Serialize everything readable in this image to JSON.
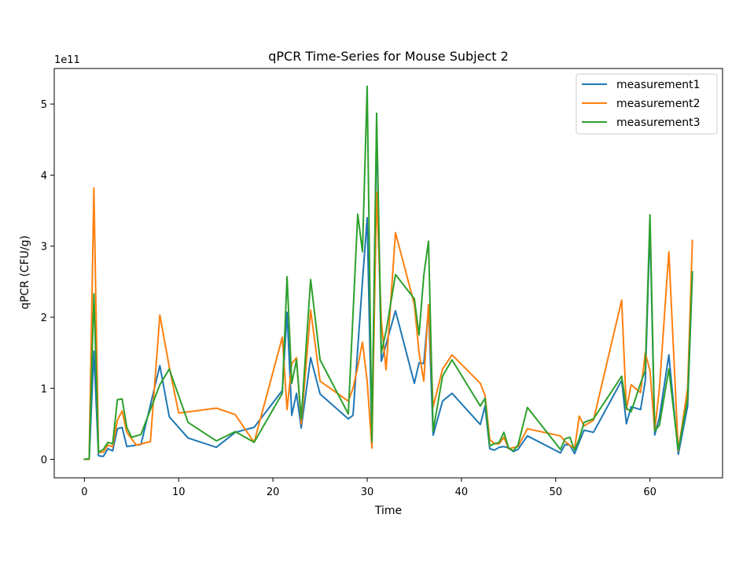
{
  "chart_data": {
    "type": "line",
    "title": "qPCR Time-Series for Mouse Subject 2",
    "xlabel": "Time",
    "ylabel": "qPCR (CFU/g)",
    "offset_text": "1e11",
    "xlim": [
      -3.2,
      67.7
    ],
    "ylim": [
      -0.26,
      5.5
    ],
    "xticks": [
      0,
      10,
      20,
      30,
      40,
      50,
      60
    ],
    "yticks": [
      0,
      1,
      2,
      3,
      4,
      5
    ],
    "legend_position": "top-right",
    "grid": false,
    "series": [
      {
        "name": "measurement1",
        "color": "#1f77b4",
        "points": [
          [
            0,
            0.0
          ],
          [
            0.5,
            0.0
          ],
          [
            1,
            1.52
          ],
          [
            1.5,
            0.05
          ],
          [
            2,
            0.04
          ],
          [
            2.5,
            0.15
          ],
          [
            3,
            0.12
          ],
          [
            3.5,
            0.43
          ],
          [
            4,
            0.45
          ],
          [
            4.5,
            0.18
          ],
          [
            5.5,
            0.2
          ],
          [
            6,
            0.21
          ],
          [
            8,
            1.32
          ],
          [
            9,
            0.6
          ],
          [
            11,
            0.3
          ],
          [
            14,
            0.17
          ],
          [
            16,
            0.38
          ],
          [
            18,
            0.45
          ],
          [
            21,
            0.97
          ],
          [
            21.5,
            2.07
          ],
          [
            22,
            0.62
          ],
          [
            22.5,
            0.93
          ],
          [
            23,
            0.44
          ],
          [
            24,
            1.43
          ],
          [
            25,
            0.92
          ],
          [
            28,
            0.57
          ],
          [
            28.5,
            0.62
          ],
          [
            29.5,
            2.5
          ],
          [
            30,
            3.4
          ],
          [
            30.5,
            0.2
          ],
          [
            31,
            4.7
          ],
          [
            31.5,
            1.38
          ],
          [
            33,
            2.09
          ],
          [
            35,
            1.07
          ],
          [
            35.5,
            1.36
          ],
          [
            36,
            1.35
          ],
          [
            36.5,
            2.12
          ],
          [
            37,
            0.34
          ],
          [
            38,
            0.82
          ],
          [
            39,
            0.93
          ],
          [
            42,
            0.49
          ],
          [
            42.5,
            0.75
          ],
          [
            43,
            0.15
          ],
          [
            43.5,
            0.13
          ],
          [
            44,
            0.17
          ],
          [
            44.5,
            0.18
          ],
          [
            45,
            0.16
          ],
          [
            45.5,
            0.11
          ],
          [
            46,
            0.14
          ],
          [
            47,
            0.33
          ],
          [
            50.5,
            0.09
          ],
          [
            51,
            0.21
          ],
          [
            51.5,
            0.2
          ],
          [
            52,
            0.08
          ],
          [
            53,
            0.41
          ],
          [
            54,
            0.38
          ],
          [
            57,
            1.11
          ],
          [
            57.5,
            0.5
          ],
          [
            58,
            0.74
          ],
          [
            59,
            0.7
          ],
          [
            59.5,
            1.1
          ],
          [
            60,
            3.3
          ],
          [
            60.5,
            0.34
          ],
          [
            61,
            0.59
          ],
          [
            62,
            1.47
          ],
          [
            63,
            0.07
          ],
          [
            64,
            0.75
          ],
          [
            64.5,
            2.6
          ]
        ]
      },
      {
        "name": "measurement2",
        "color": "#ff7f0e",
        "points": [
          [
            0,
            0.0
          ],
          [
            0.5,
            0.0
          ],
          [
            1,
            3.82
          ],
          [
            1.5,
            0.1
          ],
          [
            2,
            0.1
          ],
          [
            2.5,
            0.2
          ],
          [
            3,
            0.18
          ],
          [
            3.5,
            0.55
          ],
          [
            4,
            0.68
          ],
          [
            4.5,
            0.38
          ],
          [
            5.5,
            0.2
          ],
          [
            7,
            0.25
          ],
          [
            8,
            2.03
          ],
          [
            9,
            1.3
          ],
          [
            10,
            0.65
          ],
          [
            14,
            0.72
          ],
          [
            16,
            0.63
          ],
          [
            18,
            0.24
          ],
          [
            21,
            1.72
          ],
          [
            21.5,
            0.7
          ],
          [
            22,
            1.35
          ],
          [
            22.5,
            1.43
          ],
          [
            23,
            0.5
          ],
          [
            24,
            2.1
          ],
          [
            25,
            1.1
          ],
          [
            28,
            0.82
          ],
          [
            28.5,
            1.0
          ],
          [
            29,
            1.3
          ],
          [
            29.5,
            1.65
          ],
          [
            30,
            1.1
          ],
          [
            30.5,
            0.16
          ],
          [
            31,
            3.76
          ],
          [
            31.5,
            1.95
          ],
          [
            32,
            1.26
          ],
          [
            33,
            3.19
          ],
          [
            35,
            2.18
          ],
          [
            35.5,
            1.5
          ],
          [
            36,
            1.1
          ],
          [
            36.5,
            2.18
          ],
          [
            37,
            0.74
          ],
          [
            38,
            1.27
          ],
          [
            39,
            1.47
          ],
          [
            42,
            1.07
          ],
          [
            42.5,
            0.9
          ],
          [
            43,
            0.28
          ],
          [
            43.5,
            0.22
          ],
          [
            44,
            0.22
          ],
          [
            44.5,
            0.31
          ],
          [
            45,
            0.15
          ],
          [
            46,
            0.18
          ],
          [
            47,
            0.43
          ],
          [
            50.5,
            0.33
          ],
          [
            51,
            0.25
          ],
          [
            52,
            0.15
          ],
          [
            52.5,
            0.61
          ],
          [
            53,
            0.47
          ],
          [
            54,
            0.55
          ],
          [
            57,
            2.24
          ],
          [
            57.5,
            0.7
          ],
          [
            58,
            1.05
          ],
          [
            59,
            0.94
          ],
          [
            59.5,
            1.5
          ],
          [
            60,
            1.25
          ],
          [
            60.5,
            0.4
          ],
          [
            61,
            1.0
          ],
          [
            62,
            2.92
          ],
          [
            63,
            0.12
          ],
          [
            64,
            1.0
          ],
          [
            64.5,
            3.08
          ]
        ]
      },
      {
        "name": "measurement3",
        "color": "#2ca02c",
        "points": [
          [
            0,
            0.0
          ],
          [
            0.5,
            0.01
          ],
          [
            1,
            2.33
          ],
          [
            1.5,
            0.1
          ],
          [
            2,
            0.14
          ],
          [
            2.5,
            0.24
          ],
          [
            3,
            0.22
          ],
          [
            3.5,
            0.84
          ],
          [
            4,
            0.85
          ],
          [
            4.5,
            0.45
          ],
          [
            5,
            0.31
          ],
          [
            6,
            0.35
          ],
          [
            8,
            1.05
          ],
          [
            9,
            1.27
          ],
          [
            11,
            0.52
          ],
          [
            14,
            0.26
          ],
          [
            16,
            0.39
          ],
          [
            18,
            0.24
          ],
          [
            21,
            0.93
          ],
          [
            21.5,
            2.57
          ],
          [
            22,
            1.07
          ],
          [
            22.5,
            1.4
          ],
          [
            23,
            0.57
          ],
          [
            24,
            2.53
          ],
          [
            25,
            1.4
          ],
          [
            28,
            0.64
          ],
          [
            29,
            3.45
          ],
          [
            29.5,
            2.92
          ],
          [
            30,
            5.25
          ],
          [
            30.5,
            0.25
          ],
          [
            31,
            4.87
          ],
          [
            31.5,
            1.5
          ],
          [
            32,
            1.8
          ],
          [
            33,
            2.6
          ],
          [
            35,
            2.26
          ],
          [
            35.5,
            1.75
          ],
          [
            36,
            2.59
          ],
          [
            36.5,
            3.07
          ],
          [
            37,
            0.4
          ],
          [
            38,
            1.17
          ],
          [
            39,
            1.4
          ],
          [
            42,
            0.75
          ],
          [
            42.5,
            0.86
          ],
          [
            43,
            0.19
          ],
          [
            43.5,
            0.22
          ],
          [
            44,
            0.24
          ],
          [
            44.5,
            0.38
          ],
          [
            45,
            0.16
          ],
          [
            45.5,
            0.12
          ],
          [
            46,
            0.2
          ],
          [
            47,
            0.73
          ],
          [
            50.5,
            0.14
          ],
          [
            51,
            0.29
          ],
          [
            51.5,
            0.31
          ],
          [
            52,
            0.13
          ],
          [
            52.5,
            0.29
          ],
          [
            53,
            0.52
          ],
          [
            54,
            0.57
          ],
          [
            57,
            1.17
          ],
          [
            57.5,
            0.72
          ],
          [
            58,
            0.67
          ],
          [
            59,
            1.07
          ],
          [
            59.5,
            1.25
          ],
          [
            60,
            3.44
          ],
          [
            60.5,
            0.4
          ],
          [
            61,
            0.48
          ],
          [
            62,
            1.27
          ],
          [
            63,
            0.13
          ],
          [
            64,
            0.85
          ],
          [
            64.5,
            2.64
          ]
        ]
      }
    ]
  }
}
